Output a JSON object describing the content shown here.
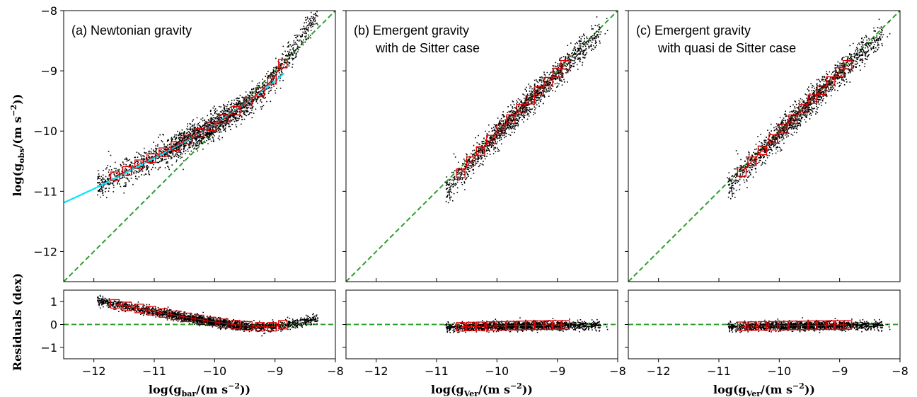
{
  "chart_data": [
    {
      "type": "scatter",
      "panel_title": "(a) Newtonian gravity",
      "panel_title_line2": "",
      "xlabel_prefix": "log(g",
      "xlabel_sub": "bar",
      "ylabel_prefix": "log(g",
      "ylabel_sub": "obs",
      "label_suffix": "/(m s",
      "label_exp": "−2",
      "label_close": "))",
      "residual_ylabel": "Residuals (dex)",
      "xlim": [
        -12.5,
        -8
      ],
      "ylim": [
        -12.5,
        -8
      ],
      "residual_ylim": [
        -1.5,
        1.5
      ],
      "xticks": [
        "−12",
        "−11",
        "−10",
        "−9",
        "−8"
      ],
      "xtick_values": [
        -12,
        -11,
        -10,
        -9,
        -8
      ],
      "yticks": [
        "−8",
        "−9",
        "−10",
        "−11",
        "−12"
      ],
      "ytick_values": [
        -8,
        -9,
        -10,
        -11,
        -12
      ],
      "residual_yticks": [
        "1",
        "0",
        "−1"
      ],
      "residual_ytick_values": [
        1,
        0,
        -1
      ],
      "reference_line": "1:1 (green dashed)",
      "fit_curve": {
        "color": "#00e5ff",
        "x": [
          -12.5,
          -12.0,
          -11.5,
          -11.0,
          -10.5,
          -10.0,
          -9.5,
          -9.0,
          -8.8
        ],
        "y": [
          -11.19,
          -10.96,
          -10.71,
          -10.45,
          -10.18,
          -9.89,
          -9.55,
          -9.17,
          -9.0
        ]
      },
      "binned": {
        "x": [
          -11.65,
          -11.45,
          -11.25,
          -11.05,
          -10.85,
          -10.65,
          -10.45,
          -10.25,
          -10.05,
          -9.85,
          -9.65,
          -9.45,
          -9.25,
          -9.05,
          -8.87
        ],
        "y": [
          -10.75,
          -10.66,
          -10.55,
          -10.45,
          -10.35,
          -10.25,
          -10.14,
          -10.03,
          -9.92,
          -9.8,
          -9.66,
          -9.51,
          -9.35,
          -9.15,
          -8.88
        ]
      },
      "residual_binned": [
        0.9,
        0.79,
        0.7,
        0.6,
        0.5,
        0.4,
        0.31,
        0.22,
        0.13,
        0.05,
        -0.01,
        -0.06,
        -0.1,
        -0.1,
        -0.01
      ],
      "scatter_model": {
        "x_range": [
          -11.95,
          -8.3
        ],
        "count": 2200,
        "scatter_sd": 0.11
      }
    },
    {
      "type": "scatter",
      "panel_title": "(b) Emergent gravity",
      "panel_title_line2": "with de Sitter case",
      "xlabel_prefix": "log(g",
      "xlabel_sub": "Ver",
      "label_suffix": "/(m s",
      "label_exp": "−2",
      "label_close": "))",
      "xlim": [
        -12.5,
        -8
      ],
      "ylim": [
        -12.5,
        -8
      ],
      "residual_ylim": [
        -1.5,
        1.5
      ],
      "xticks": [
        "−12",
        "−11",
        "−10",
        "−9",
        "−8"
      ],
      "xtick_values": [
        -12,
        -11,
        -10,
        -9,
        -8
      ],
      "reference_line": "1:1 (green dashed)",
      "binned": {
        "x": [
          -10.6,
          -10.43,
          -10.27,
          -10.1,
          -9.93,
          -9.77,
          -9.6,
          -9.45,
          -9.3,
          -9.15,
          -9.0,
          -8.87
        ],
        "y": [
          -10.7,
          -10.5,
          -10.33,
          -10.14,
          -9.97,
          -9.8,
          -9.63,
          -9.48,
          -9.33,
          -9.18,
          -9.03,
          -8.9
        ]
      },
      "residual_binned": [
        -0.1,
        -0.09,
        -0.08,
        -0.07,
        -0.06,
        -0.05,
        -0.04,
        -0.03,
        -0.03,
        -0.02,
        -0.02,
        -0.02
      ],
      "scatter_model": {
        "x_range": [
          -10.85,
          -8.3
        ],
        "count": 2200,
        "scatter_sd": 0.11
      }
    },
    {
      "type": "scatter",
      "panel_title": "(c) Emergent gravity",
      "panel_title_line2": "with quasi de Sitter case",
      "xlabel_prefix": "log(g",
      "xlabel_sub": "Ver",
      "label_suffix": "/(m s",
      "label_exp": "−2",
      "label_close": "))",
      "xlim": [
        -12.5,
        -8
      ],
      "ylim": [
        -12.5,
        -8
      ],
      "residual_ylim": [
        -1.5,
        1.5
      ],
      "xticks": [
        "−12",
        "−11",
        "−10",
        "−9",
        "−8"
      ],
      "xtick_values": [
        -12,
        -11,
        -10,
        -9,
        -8
      ],
      "reference_line": "1:1 (green dashed)",
      "binned": {
        "x": [
          -10.62,
          -10.45,
          -10.28,
          -10.1,
          -9.93,
          -9.77,
          -9.6,
          -9.45,
          -9.3,
          -9.15,
          -9.0,
          -8.87
        ],
        "y": [
          -10.68,
          -10.5,
          -10.32,
          -10.13,
          -9.96,
          -9.8,
          -9.63,
          -9.47,
          -9.32,
          -9.17,
          -9.02,
          -8.9
        ]
      },
      "residual_binned": [
        -0.08,
        -0.07,
        -0.06,
        -0.06,
        -0.05,
        -0.04,
        -0.04,
        -0.03,
        -0.03,
        -0.02,
        -0.02,
        -0.02
      ],
      "scatter_model": {
        "x_range": [
          -10.85,
          -8.3
        ],
        "count": 2200,
        "scatter_sd": 0.11
      }
    }
  ],
  "colors": {
    "points": "#000000",
    "binned_marker": "#e00000",
    "reference_line": "#2ca02c",
    "fit_curve": "#00e5ff",
    "axes": "#000000",
    "background": "#ffffff"
  }
}
